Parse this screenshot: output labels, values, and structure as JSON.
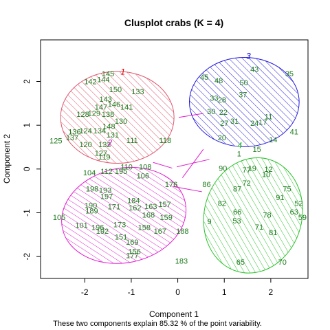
{
  "chart_data": {
    "type": "scatter",
    "title": "Clusplot crabs (K = 4)",
    "xlabel": "Component 1",
    "ylabel": "Component 2",
    "subtitle": "These two components explain 85.32 % of the point variability.",
    "xlim": [
      -2.95,
      2.8
    ],
    "ylim": [
      -2.5,
      2.95
    ],
    "xticks": [
      -2,
      -1,
      0,
      1,
      2
    ],
    "yticks": [
      -2,
      -1,
      0,
      1,
      2
    ],
    "grid": false,
    "colors": {
      "cluster1": "#DF536B",
      "cluster2": "#E11BD0",
      "cluster3": "#2117DA",
      "cluster4": "#28C228",
      "points": "#1C7A1C",
      "lines": "#E11BD0",
      "c1_label": "#DD0000",
      "c3_label": "#0000DD",
      "c4_label": "#22BB22",
      "c2_label": "#CC22CC"
    },
    "clusters": [
      {
        "id": "1",
        "cx": -1.3,
        "cy": 1.18,
        "rx": 1.22,
        "ry": 1.05,
        "angle": 0,
        "label_x": -1.18,
        "label_y": 2.22
      },
      {
        "id": "2",
        "cx": -1.16,
        "cy": -1.06,
        "rx": 1.35,
        "ry": 1.08,
        "angle": -12,
        "label_x": -1.46,
        "label_y": 0.6
      },
      {
        "id": "3",
        "cx": 1.43,
        "cy": 1.53,
        "rx": 1.18,
        "ry": 1.02,
        "angle": 0,
        "label_x": 1.52,
        "label_y": 2.58
      },
      {
        "id": "4",
        "cx": 1.62,
        "cy": -1.06,
        "rx": 1.05,
        "ry": 1.33,
        "angle": 15,
        "label_x": 1.33,
        "label_y": 0.54
      }
    ],
    "connectors": [
      {
        "x1": 0.02,
        "y1": 1.18,
        "x2": 0.55,
        "y2": 1.27
      },
      {
        "x1": -0.53,
        "y1": 0.15,
        "x2": -0.12,
        "y2": 0.02
      },
      {
        "x1": 0.1,
        "y1": -0.2,
        "x2": 0.55,
        "y2": 0.45
      },
      {
        "x1": -0.1,
        "y1": -0.4,
        "x2": 0.52,
        "y2": -0.52
      },
      {
        "x1": -0.02,
        "y1": 0.05,
        "x2": 0.68,
        "y2": 0.22
      }
    ],
    "points": [
      {
        "label": "145",
        "x": -1.5,
        "y": 2.18
      },
      {
        "label": "142",
        "x": -1.88,
        "y": 2.0
      },
      {
        "label": "144",
        "x": -1.6,
        "y": 2.05
      },
      {
        "label": "150",
        "x": -1.34,
        "y": 1.82
      },
      {
        "label": "133",
        "x": -0.86,
        "y": 1.77
      },
      {
        "label": "143",
        "x": -1.55,
        "y": 1.6
      },
      {
        "label": "146",
        "x": -1.37,
        "y": 1.48
      },
      {
        "label": "141",
        "x": -1.1,
        "y": 1.42
      },
      {
        "label": "147",
        "x": -1.65,
        "y": 1.42
      },
      {
        "label": "129",
        "x": -1.8,
        "y": 1.28
      },
      {
        "label": "128",
        "x": -2.04,
        "y": 1.25
      },
      {
        "label": "138",
        "x": -1.5,
        "y": 1.25
      },
      {
        "label": "130",
        "x": -1.22,
        "y": 1.1
      },
      {
        "label": "124",
        "x": -1.98,
        "y": 0.88
      },
      {
        "label": "136",
        "x": -2.22,
        "y": 0.85
      },
      {
        "label": "137",
        "x": -2.27,
        "y": 0.72
      },
      {
        "label": "134",
        "x": -1.68,
        "y": 0.88
      },
      {
        "label": "148",
        "x": -1.48,
        "y": 0.98
      },
      {
        "label": "131",
        "x": -1.4,
        "y": 0.78
      },
      {
        "label": "132",
        "x": -1.57,
        "y": 0.56
      },
      {
        "label": "111",
        "x": -0.98,
        "y": 0.66
      },
      {
        "label": "118",
        "x": -0.27,
        "y": 0.66
      },
      {
        "label": "125",
        "x": -2.62,
        "y": 0.65
      },
      {
        "label": "120",
        "x": -1.98,
        "y": 0.56
      },
      {
        "label": "127",
        "x": -1.65,
        "y": 0.37
      },
      {
        "label": "119",
        "x": -1.58,
        "y": 0.28
      },
      {
        "label": "110",
        "x": -1.1,
        "y": 0.05
      },
      {
        "label": "108",
        "x": -0.7,
        "y": 0.05
      },
      {
        "label": "104",
        "x": -1.9,
        "y": -0.08
      },
      {
        "label": "112",
        "x": -1.53,
        "y": -0.05
      },
      {
        "label": "195",
        "x": -1.22,
        "y": -0.05
      },
      {
        "label": "106",
        "x": -0.75,
        "y": -0.15
      },
      {
        "label": "176",
        "x": -0.14,
        "y": -0.35
      },
      {
        "label": "198",
        "x": -1.84,
        "y": -0.45
      },
      {
        "label": "193",
        "x": -1.56,
        "y": -0.48
      },
      {
        "label": "197",
        "x": -1.53,
        "y": -0.62
      },
      {
        "label": "184",
        "x": -0.95,
        "y": -0.72
      },
      {
        "label": "157",
        "x": -0.28,
        "y": -0.8
      },
      {
        "label": "190",
        "x": -1.87,
        "y": -0.83
      },
      {
        "label": "189",
        "x": -1.85,
        "y": -0.95
      },
      {
        "label": "171",
        "x": -1.37,
        "y": -0.86
      },
      {
        "label": "162",
        "x": -0.92,
        "y": -0.88
      },
      {
        "label": "163",
        "x": -0.58,
        "y": -0.85
      },
      {
        "label": "105",
        "x": -2.55,
        "y": -1.1
      },
      {
        "label": "159",
        "x": -0.25,
        "y": -1.1
      },
      {
        "label": "168",
        "x": -0.63,
        "y": -1.05
      },
      {
        "label": "101",
        "x": -2.07,
        "y": -1.28
      },
      {
        "label": "196",
        "x": -1.72,
        "y": -1.33
      },
      {
        "label": "192",
        "x": -1.62,
        "y": -1.42
      },
      {
        "label": "173",
        "x": -1.25,
        "y": -1.27
      },
      {
        "label": "158",
        "x": -0.72,
        "y": -1.33
      },
      {
        "label": "167",
        "x": -0.38,
        "y": -1.42
      },
      {
        "label": "188",
        "x": 0.1,
        "y": -1.42
      },
      {
        "label": "151",
        "x": -1.22,
        "y": -1.55
      },
      {
        "label": "169",
        "x": -0.98,
        "y": -1.67
      },
      {
        "label": "156",
        "x": -0.93,
        "y": -1.88
      },
      {
        "label": "177",
        "x": -0.98,
        "y": -1.97
      },
      {
        "label": "183",
        "x": 0.08,
        "y": -2.1
      },
      {
        "label": "45",
        "x": 0.57,
        "y": 2.1
      },
      {
        "label": "48",
        "x": 0.88,
        "y": 2.02
      },
      {
        "label": "43",
        "x": 1.65,
        "y": 2.28
      },
      {
        "label": "35",
        "x": 2.4,
        "y": 2.18
      },
      {
        "label": "50",
        "x": 1.42,
        "y": 1.98
      },
      {
        "label": "33",
        "x": 0.78,
        "y": 1.62
      },
      {
        "label": "37",
        "x": 1.4,
        "y": 1.7
      },
      {
        "label": "28",
        "x": 0.95,
        "y": 1.58
      },
      {
        "label": "30",
        "x": 0.72,
        "y": 1.32
      },
      {
        "label": "22",
        "x": 0.98,
        "y": 1.3
      },
      {
        "label": "11",
        "x": 1.95,
        "y": 1.2
      },
      {
        "label": "17",
        "x": 1.83,
        "y": 1.07
      },
      {
        "label": "31",
        "x": 1.22,
        "y": 1.1
      },
      {
        "label": "27",
        "x": 1.0,
        "y": 1.05
      },
      {
        "label": "24",
        "x": 1.65,
        "y": 1.05
      },
      {
        "label": "41",
        "x": 2.5,
        "y": 0.85
      },
      {
        "label": "20",
        "x": 0.95,
        "y": 0.72
      },
      {
        "label": "14",
        "x": 2.05,
        "y": 0.67
      },
      {
        "label": "15",
        "x": 1.7,
        "y": 0.45
      },
      {
        "label": "1",
        "x": 1.32,
        "y": 0.35
      },
      {
        "label": "90",
        "x": 0.97,
        "y": 0.02
      },
      {
        "label": "77",
        "x": 1.48,
        "y": -0.02
      },
      {
        "label": "19",
        "x": 1.6,
        "y": 0.02
      },
      {
        "label": "12",
        "x": 1.95,
        "y": 0.0
      },
      {
        "label": "10",
        "x": 1.9,
        "y": -0.12
      },
      {
        "label": "86",
        "x": 0.62,
        "y": -0.35
      },
      {
        "label": "72",
        "x": 1.48,
        "y": -0.32
      },
      {
        "label": "75",
        "x": 2.35,
        "y": -0.45
      },
      {
        "label": "87",
        "x": 1.28,
        "y": -0.45
      },
      {
        "label": "91",
        "x": 2.2,
        "y": -0.65
      },
      {
        "label": "52",
        "x": 2.6,
        "y": -0.78
      },
      {
        "label": "82",
        "x": 0.95,
        "y": -0.78
      },
      {
        "label": "66",
        "x": 1.28,
        "y": -0.98
      },
      {
        "label": "63",
        "x": 2.5,
        "y": -0.98
      },
      {
        "label": "59",
        "x": 2.68,
        "y": -1.1
      },
      {
        "label": "78",
        "x": 1.92,
        "y": -1.05
      },
      {
        "label": "53",
        "x": 1.27,
        "y": -1.18
      },
      {
        "label": "9",
        "x": 0.68,
        "y": -1.2
      },
      {
        "label": "71",
        "x": 1.75,
        "y": -1.32
      },
      {
        "label": "81",
        "x": 2.05,
        "y": -1.45
      },
      {
        "label": "65",
        "x": 1.35,
        "y": -2.12
      },
      {
        "label": "70",
        "x": 2.25,
        "y": -2.12
      }
    ]
  }
}
